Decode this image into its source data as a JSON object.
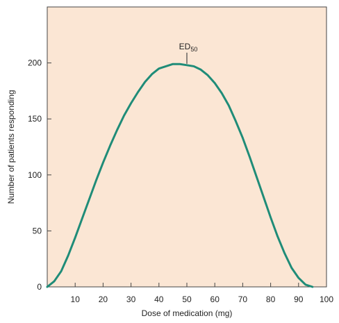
{
  "colors": {
    "plot_background": "#fbe6d4",
    "curve": "#1f8c78",
    "axis": "#444444"
  },
  "chart_data": {
    "type": "line",
    "xlabel": "Dose of medication (mg)",
    "ylabel": "Number of patients responding",
    "xlim": [
      0,
      100
    ],
    "ylim": [
      0,
      250
    ],
    "x_ticks": [
      "10",
      "20",
      "30",
      "40",
      "50",
      "60",
      "70",
      "80",
      "90",
      "100"
    ],
    "x_tick_values": [
      10,
      20,
      30,
      40,
      50,
      60,
      70,
      80,
      90,
      100
    ],
    "y_ticks": [
      "0",
      "50",
      "100",
      "150",
      "200"
    ],
    "y_tick_values": [
      0,
      50,
      100,
      150,
      200
    ],
    "grid": false,
    "series": [
      {
        "x": [
          0,
          2.5,
          5,
          7.5,
          10,
          12.5,
          15,
          17.5,
          20,
          22.5,
          25,
          27.5,
          30,
          32.5,
          35,
          37.5,
          40,
          42.5,
          45,
          47.5,
          50,
          52.5,
          55,
          57.5,
          60,
          62.5,
          65,
          67.5,
          70,
          72.5,
          75,
          77.5,
          80,
          82.5,
          85,
          87.5,
          90,
          92.5,
          95
        ],
        "y": [
          0,
          5,
          14,
          28,
          44,
          61,
          78,
          95,
          111,
          126,
          140,
          153,
          164,
          174,
          183,
          190,
          195,
          197,
          199,
          199,
          198,
          197,
          194,
          189,
          182,
          173,
          162,
          148,
          133,
          116,
          98,
          80,
          62,
          45,
          30,
          17,
          8,
          2,
          0
        ]
      }
    ],
    "annotations": [
      {
        "text": "ED",
        "subscript": "50",
        "x": 50,
        "y": 198
      }
    ]
  }
}
